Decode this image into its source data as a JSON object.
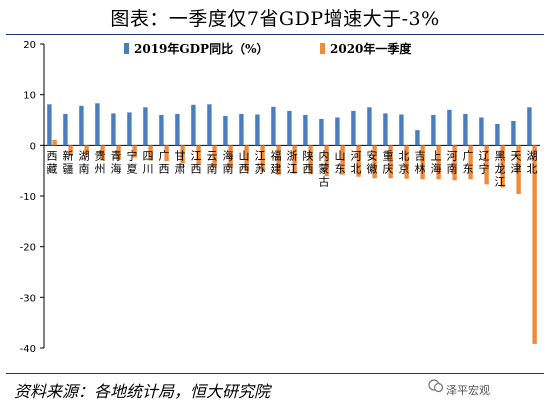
{
  "title": "图表：一季度仅7省GDP增速大于-3%",
  "source": "资料来源：各地统计局，恒大研究院",
  "watermark": "泽平宏观",
  "chart_data": {
    "type": "bar",
    "categories": [
      "西藏",
      "新疆",
      "湖南",
      "贵州",
      "青海",
      "宁夏",
      "四川",
      "广西",
      "甘肃",
      "江西",
      "云南",
      "海南",
      "山西",
      "江苏",
      "福建",
      "浙江",
      "陕西",
      "内蒙古",
      "山东",
      "河北",
      "安徽",
      "重庆",
      "北京",
      "吉林",
      "上海",
      "河南",
      "广东",
      "辽宁",
      "黑龙江",
      "天津",
      "湖北"
    ],
    "series": [
      {
        "name": "2019年GDP同比（%）",
        "color": "#4a7ebb",
        "values": [
          8.1,
          6.2,
          7.8,
          8.3,
          6.3,
          6.5,
          7.5,
          6.0,
          6.2,
          8.0,
          8.1,
          5.8,
          6.2,
          6.1,
          7.6,
          6.8,
          6.0,
          5.2,
          5.5,
          6.8,
          7.5,
          6.3,
          6.1,
          3.0,
          6.0,
          7.0,
          6.2,
          5.5,
          4.2,
          4.8,
          7.5
        ]
      },
      {
        "name": "2020年一季度",
        "color": "#f08b3c",
        "values": [
          1.1,
          -2.1,
          -1.9,
          -3.0,
          -2.9,
          -2.4,
          -3.0,
          -3.1,
          -3.6,
          -3.8,
          -4.4,
          -4.5,
          -5.1,
          -5.2,
          -5.8,
          -5.6,
          -5.7,
          -6.1,
          -5.8,
          -6.2,
          -6.5,
          -6.5,
          -6.6,
          -6.7,
          -6.7,
          -6.9,
          -6.7,
          -7.7,
          -8.3,
          -9.6,
          -39.2
        ]
      }
    ],
    "ylim": [
      -40,
      20
    ],
    "yticks": [
      20,
      10,
      0,
      -10,
      -20,
      -30,
      -40
    ],
    "legend_position": "top",
    "grid": false
  }
}
